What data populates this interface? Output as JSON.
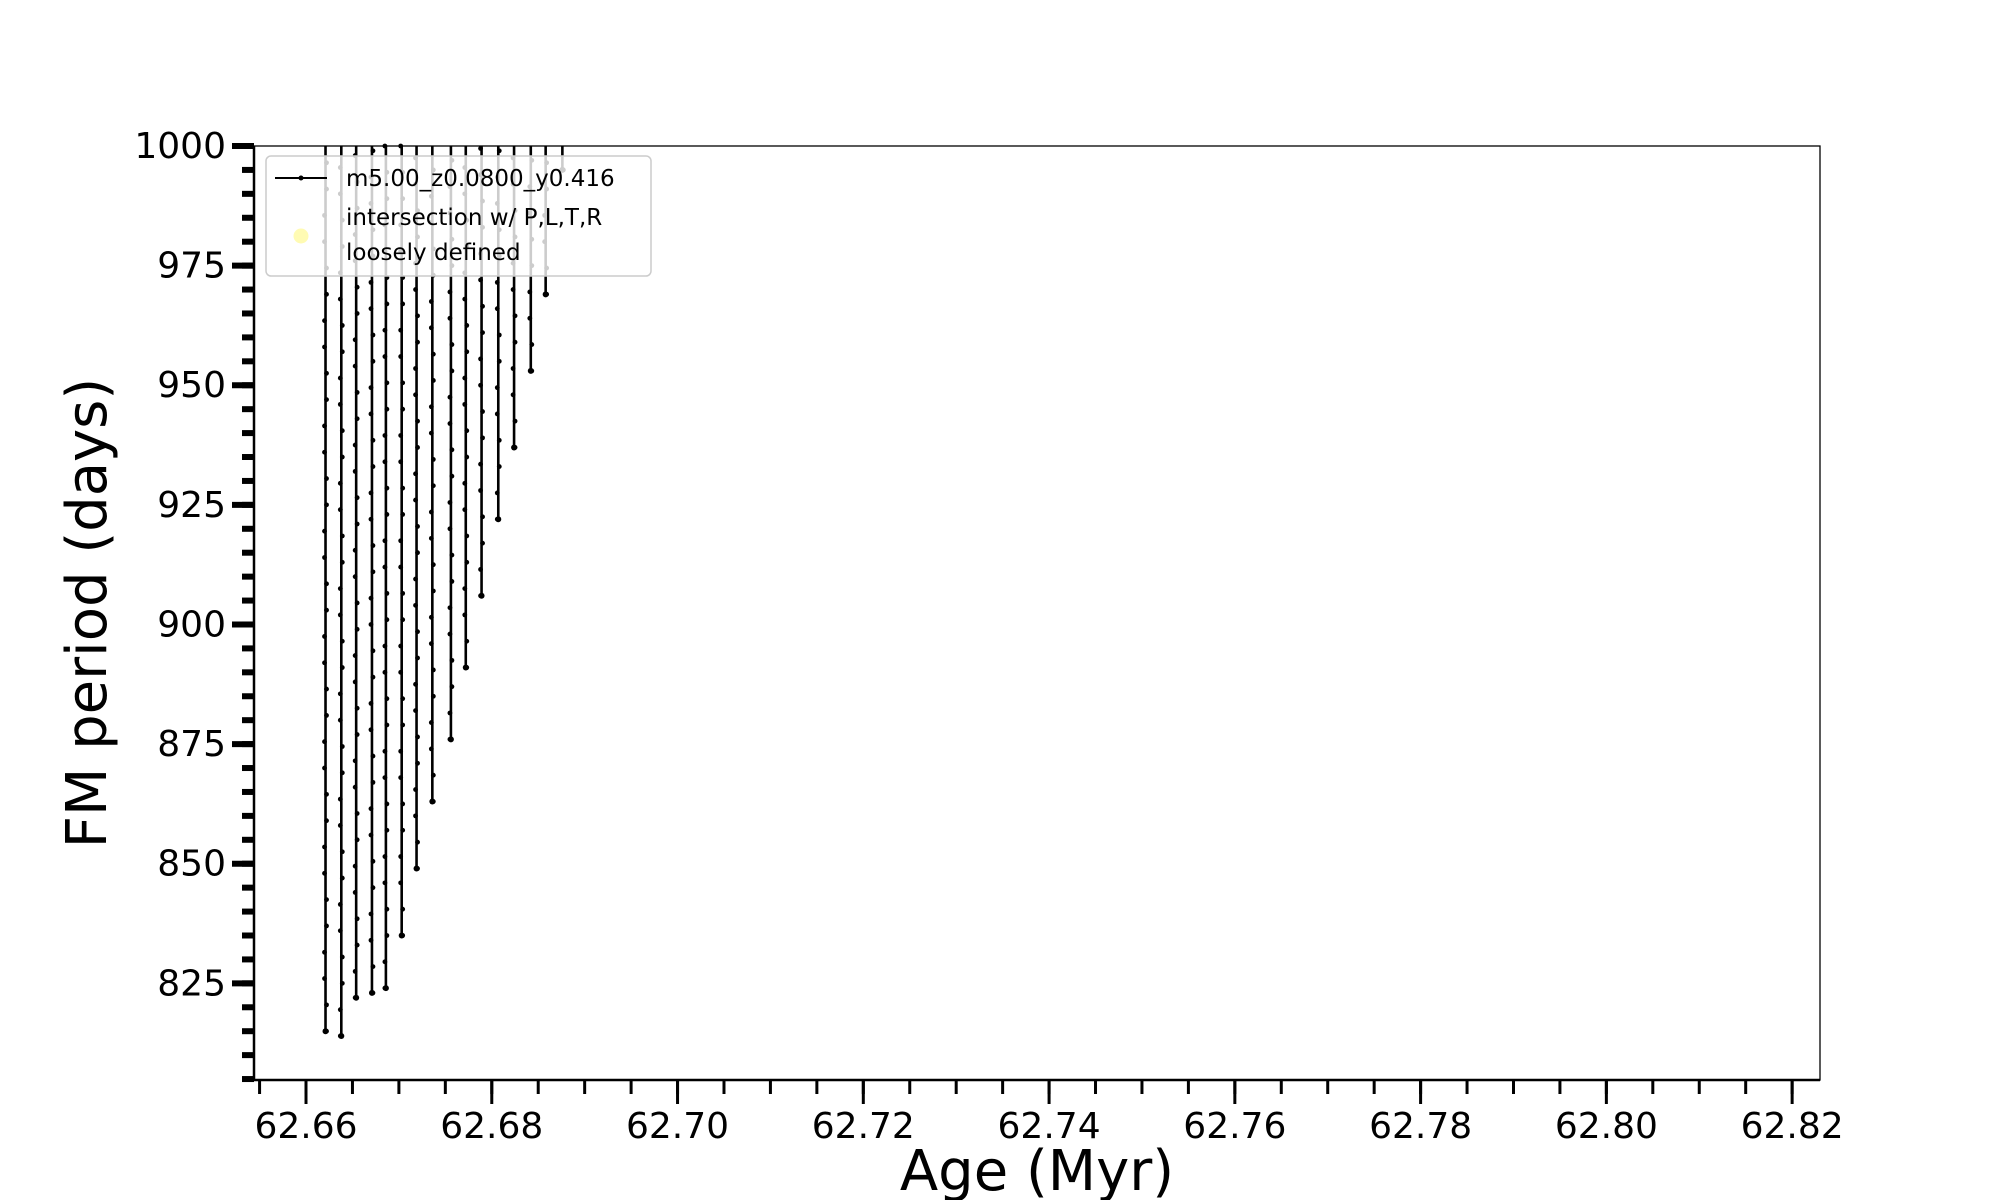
{
  "chart_data": {
    "type": "line",
    "title": "",
    "xlabel": "Age (Myr)",
    "ylabel": "FM period (days)",
    "xlim": [
      62.6544,
      62.823
    ],
    "ylim": [
      804.8,
      1000
    ],
    "x_ticks": [
      "62.66",
      "62.68",
      "62.70",
      "62.72",
      "62.74",
      "62.76",
      "62.78",
      "62.80",
      "62.82"
    ],
    "y_ticks": [
      "825",
      "850",
      "875",
      "900",
      "925",
      "950",
      "975",
      "1000"
    ],
    "grid": false,
    "legend_position": "top-left",
    "series": [
      {
        "name": "m5.00_z0.0800_y0.416",
        "color": "#000000",
        "marker": "dot",
        "cycles": [
          {
            "age": 62.6621,
            "min_period": 815
          },
          {
            "age": 62.6638,
            "min_period": 814
          },
          {
            "age": 62.6654,
            "min_period": 822
          },
          {
            "age": 62.6671,
            "min_period": 823
          },
          {
            "age": 62.6686,
            "min_period": 824
          },
          {
            "age": 62.6703,
            "min_period": 835
          },
          {
            "age": 62.6719,
            "min_period": 849
          },
          {
            "age": 62.6736,
            "min_period": 863
          },
          {
            "age": 62.6756,
            "min_period": 876
          },
          {
            "age": 62.6772,
            "min_period": 891
          },
          {
            "age": 62.6789,
            "min_period": 906
          },
          {
            "age": 62.6807,
            "min_period": 922
          },
          {
            "age": 62.6824,
            "min_period": 937
          },
          {
            "age": 62.6842,
            "min_period": 953
          },
          {
            "age": 62.6858,
            "min_period": 969
          },
          {
            "age": 62.6876,
            "min_period": 995
          }
        ]
      }
    ],
    "legend": [
      {
        "label": "m5.00_z0.0800_y0.416",
        "color": "#000000",
        "symbol": "line-dot"
      },
      {
        "label_line1": "intersection w/ P,L,T,R",
        "label_line2": "loosely defined",
        "color": "#fffaa0",
        "symbol": "circle"
      }
    ]
  }
}
